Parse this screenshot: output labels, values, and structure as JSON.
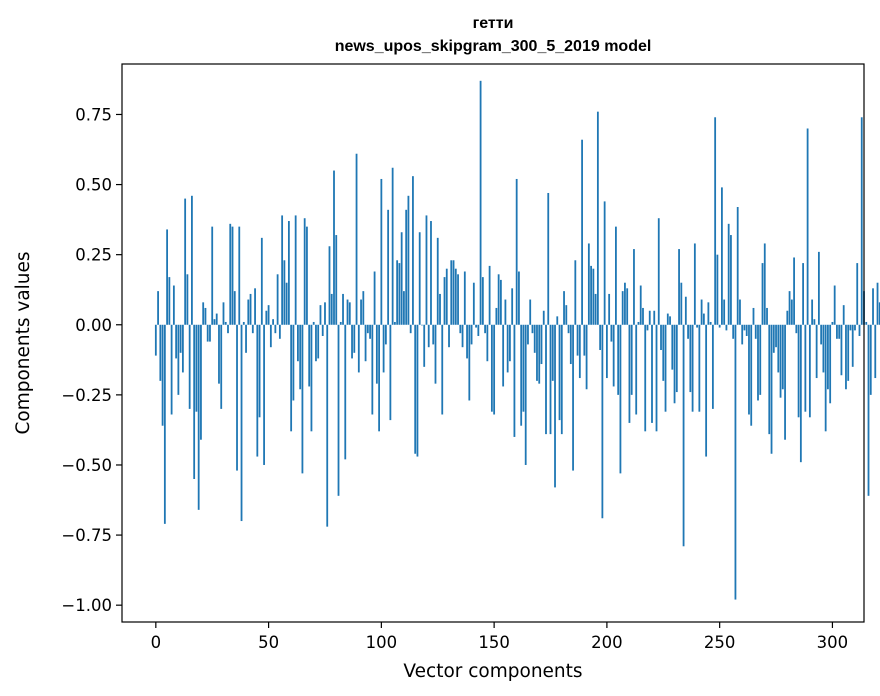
{
  "chart_data": {
    "type": "bar",
    "title": "гетти",
    "subtitle": "news_upos_skipgram_300_5_2019 model",
    "xlabel": "Vector components",
    "ylabel": "Components values",
    "xlim": [
      -15,
      314
    ],
    "ylim": [
      -1.06,
      0.93
    ],
    "xticks": [
      0,
      50,
      100,
      150,
      200,
      250,
      300
    ],
    "xtick_labels": [
      "0",
      "50",
      "100",
      "150",
      "200",
      "250",
      "300"
    ],
    "yticks": [
      -1.0,
      -0.75,
      -0.5,
      -0.25,
      0.0,
      0.25,
      0.5,
      0.75
    ],
    "ytick_labels": [
      "−1.00",
      "−0.75",
      "−0.50",
      "−0.25",
      "0.00",
      "0.25",
      "0.50",
      "0.75"
    ],
    "bar_color": "#1f77b4",
    "grid": false,
    "values": [
      -0.11,
      0.12,
      -0.2,
      -0.36,
      -0.71,
      0.34,
      0.17,
      -0.32,
      0.14,
      -0.12,
      -0.25,
      -0.1,
      -0.17,
      0.45,
      0.18,
      -0.3,
      0.46,
      -0.55,
      -0.31,
      -0.66,
      -0.41,
      0.08,
      0.06,
      -0.06,
      -0.06,
      0.35,
      0.02,
      0.04,
      -0.21,
      -0.3,
      0.08,
      0.01,
      -0.03,
      0.36,
      0.35,
      0.12,
      -0.52,
      0.35,
      -0.7,
      0.01,
      -0.1,
      0.09,
      0.11,
      -0.03,
      0.13,
      -0.47,
      -0.33,
      0.31,
      -0.5,
      0.05,
      0.07,
      -0.08,
      0.02,
      -0.03,
      0.18,
      -0.05,
      0.39,
      0.23,
      0.15,
      0.37,
      -0.38,
      -0.27,
      0.39,
      -0.13,
      -0.23,
      -0.53,
      0.38,
      0.35,
      -0.22,
      -0.38,
      0.01,
      -0.13,
      -0.12,
      0.07,
      -0.04,
      0.08,
      -0.72,
      0.28,
      0.11,
      0.55,
      0.32,
      -0.61,
      0.01,
      0.11,
      -0.48,
      0.09,
      0.08,
      -0.12,
      -0.1,
      0.61,
      -0.17,
      0.09,
      0.12,
      -0.13,
      -0.03,
      -0.05,
      -0.32,
      0.19,
      -0.21,
      -0.38,
      0.52,
      -0.17,
      -0.07,
      0.41,
      -0.34,
      0.56,
      0.01,
      0.23,
      0.22,
      0.33,
      0.12,
      0.41,
      0.46,
      -0.03,
      0.53,
      -0.46,
      -0.47,
      0.33,
      0.0,
      -0.15,
      0.39,
      -0.08,
      0.37,
      -0.07,
      -0.21,
      0.31,
      0.11,
      -0.32,
      0.17,
      0.2,
      -0.08,
      0.23,
      0.23,
      0.2,
      0.18,
      -0.03,
      -0.08,
      0.19,
      -0.12,
      -0.27,
      -0.07,
      0.15,
      -0.01,
      -0.04,
      0.87,
      0.17,
      -0.03,
      -0.13,
      0.21,
      -0.31,
      -0.32,
      0.06,
      0.18,
      0.16,
      -0.22,
      0.09,
      -0.17,
      -0.13,
      0.13,
      -0.4,
      0.52,
      0.19,
      -0.36,
      -0.31,
      -0.5,
      -0.07,
      0.09,
      -0.03,
      -0.1,
      -0.2,
      -0.21,
      -0.14,
      0.05,
      -0.39,
      0.47,
      -0.39,
      -0.2,
      -0.58,
      0.03,
      -0.34,
      -0.39,
      0.12,
      0.07,
      -0.03,
      -0.14,
      -0.52,
      0.23,
      -0.11,
      -0.19,
      0.66,
      -0.11,
      -0.23,
      0.29,
      0.21,
      0.2,
      0.11,
      0.76,
      -0.09,
      -0.69,
      0.44,
      -0.19,
      0.11,
      -0.06,
      -0.22,
      0.35,
      -0.25,
      -0.53,
      0.12,
      0.15,
      0.13,
      -0.35,
      -0.25,
      0.27,
      -0.32,
      0.01,
      0.14,
      0.06,
      -0.38,
      -0.02,
      0.05,
      -0.35,
      0.05,
      -0.38,
      0.38,
      -0.09,
      -0.2,
      -0.31,
      0.04,
      0.03,
      -0.16,
      -0.28,
      -0.24,
      0.27,
      0.15,
      -0.79,
      0.1,
      -0.05,
      -0.24,
      -0.31,
      0.29,
      -0.01,
      -0.31,
      0.09,
      0.04,
      -0.47,
      0.08,
      0.01,
      -0.3,
      0.74,
      0.25,
      -0.01,
      0.49,
      0.09,
      -0.02,
      0.36,
      0.32,
      -0.05,
      -0.98,
      0.42,
      0.09,
      -0.07,
      -0.02,
      -0.04,
      -0.32,
      -0.36,
      0.06,
      -0.05,
      -0.27,
      -0.25,
      0.22,
      0.29,
      0.06,
      -0.39,
      -0.46,
      -0.1,
      -0.08,
      -0.17,
      -0.26,
      -0.23,
      -0.41,
      0.05,
      0.12,
      0.09,
      0.24,
      -0.03,
      -0.33,
      -0.49,
      0.22,
      -0.31,
      0.7,
      -0.33,
      0.09,
      0.02,
      -0.19,
      0.26,
      -0.07,
      -0.17,
      -0.38,
      -0.23,
      -0.28,
      0.01,
      0.14,
      -0.05,
      -0.05,
      -0.18,
      0.07,
      -0.23,
      -0.2,
      -0.02,
      -0.15,
      -0.02,
      0.22,
      -0.04,
      0.74,
      0.12,
      0.01,
      -0.61,
      -0.25,
      0.13,
      -0.19,
      0.15,
      0.08,
      -0.09,
      0.08
    ]
  }
}
